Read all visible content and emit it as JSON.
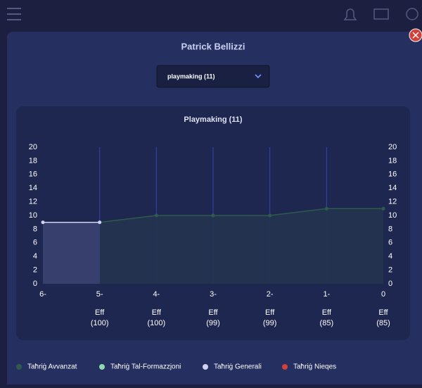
{
  "header": {
    "title": "Patrick Bellizzi"
  },
  "dropdown": {
    "selected": "playmaking (11)"
  },
  "chart_data": {
    "type": "line",
    "title": "Playmaking (11)",
    "categories": [
      "6-",
      "5-",
      "4-",
      "3-",
      "2-",
      "1-",
      "0"
    ],
    "x_sublabels": [
      null,
      {
        "line1": "Eff",
        "line2": "(100)"
      },
      {
        "line1": "Eff",
        "line2": "(100)"
      },
      {
        "line1": "Eff",
        "line2": "(99)"
      },
      {
        "line1": "Eff",
        "line2": "(99)"
      },
      {
        "line1": "Eff",
        "line2": "(85)"
      },
      {
        "line1": "Eff",
        "line2": "(85)"
      }
    ],
    "series": [
      {
        "name": "Taħriġ Avvanzat",
        "color": "#2f5b4c",
        "area": "#23344f",
        "values": [
          null,
          9,
          10,
          10,
          10,
          11,
          11
        ]
      },
      {
        "name": "Taħriġ Tal-Formazzjoni",
        "color": "#8fd8b0",
        "values": [
          null,
          null,
          null,
          null,
          null,
          null,
          null
        ]
      },
      {
        "name": "Taħriġ Generali",
        "color": "#cfd2f2",
        "area": "#3a4270",
        "values": [
          9,
          9,
          null,
          null,
          null,
          null,
          null
        ]
      },
      {
        "name": "Taħriġ Nieqes",
        "color": "#d2403a",
        "values": [
          null,
          null,
          null,
          null,
          null,
          null,
          null
        ]
      }
    ],
    "ylim": [
      0,
      20
    ],
    "yticks": [
      0,
      2,
      4,
      6,
      8,
      10,
      12,
      14,
      16,
      18,
      20
    ],
    "y2lim": [
      0,
      20
    ],
    "y2ticks": [
      0,
      2,
      4,
      6,
      8,
      10,
      12,
      14,
      16,
      18,
      20
    ],
    "legend": "bottom"
  }
}
